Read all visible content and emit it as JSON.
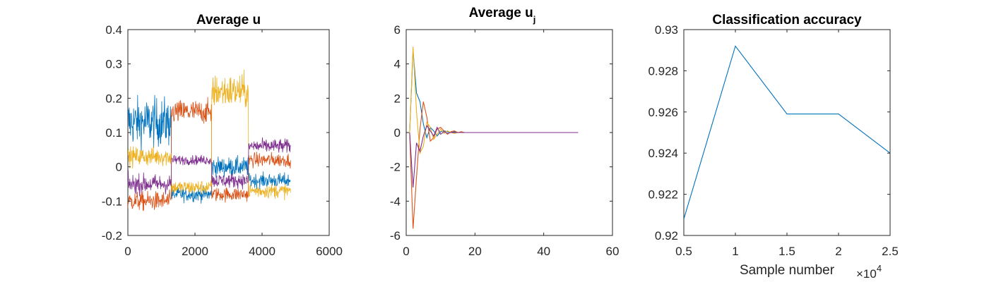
{
  "chart_data": [
    {
      "type": "line",
      "title": "Average u",
      "xlabel": "",
      "ylabel": "",
      "xlim": [
        0,
        6000
      ],
      "ylim": [
        -0.2,
        0.4
      ],
      "xticks": [
        0,
        2000,
        4000,
        6000
      ],
      "yticks": [
        -0.2,
        -0.1,
        0,
        0.1,
        0.2,
        0.3,
        0.4
      ],
      "xtick_labels": [
        "0",
        "2000",
        "4000",
        "6000"
      ],
      "ytick_labels": [
        "-0.2",
        "-0.1",
        "0",
        "0.1",
        "0.2",
        "0.3",
        "0.4"
      ],
      "grid": false,
      "noisy": true,
      "x_end": 4850,
      "segment_bounds": [
        0,
        1300,
        2500,
        3600,
        4850
      ],
      "series": [
        {
          "color": "#0072BD",
          "segment_means": [
            0.13,
            -0.08,
            0.0,
            -0.04
          ],
          "segment_noise": [
            0.05,
            0.015,
            0.02,
            0.015
          ]
        },
        {
          "color": "#D95319",
          "segment_means": [
            -0.1,
            0.16,
            -0.08,
            0.02
          ],
          "segment_noise": [
            0.02,
            0.025,
            0.015,
            0.015
          ]
        },
        {
          "color": "#EDB120",
          "segment_means": [
            0.03,
            -0.06,
            0.22,
            -0.07
          ],
          "segment_noise": [
            0.02,
            0.015,
            0.035,
            0.015
          ]
        },
        {
          "color": "#7E2F8E",
          "segment_means": [
            -0.05,
            0.02,
            -0.04,
            0.06
          ],
          "segment_noise": [
            0.02,
            0.01,
            0.015,
            0.015
          ]
        }
      ]
    },
    {
      "type": "line",
      "title": "Average u",
      "title_subscript": "j",
      "xlabel": "",
      "ylabel": "",
      "xlim": [
        0,
        60
      ],
      "ylim": [
        -6,
        6
      ],
      "xticks": [
        0,
        20,
        40,
        60
      ],
      "yticks": [
        -6,
        -4,
        -2,
        0,
        2,
        4,
        6
      ],
      "xtick_labels": [
        "0",
        "20",
        "40",
        "60"
      ],
      "ytick_labels": [
        "-6",
        "-4",
        "-2",
        "0",
        "2",
        "4",
        "6"
      ],
      "grid": false,
      "x": [
        1,
        2,
        3,
        4,
        5,
        6,
        7,
        8,
        9,
        10,
        11,
        12,
        13,
        14,
        15,
        16,
        17,
        18,
        19,
        20,
        25,
        30,
        35,
        40,
        45,
        50
      ],
      "series": [
        {
          "color": "#0072BD",
          "values": [
            0,
            4.8,
            2.3,
            1.8,
            0.5,
            -0.3,
            0.3,
            0.1,
            -0.2,
            0.05,
            0.1,
            0.05,
            0,
            0.05,
            0,
            0,
            0,
            0,
            0,
            0,
            0,
            0,
            0,
            0,
            0,
            0
          ]
        },
        {
          "color": "#D95319",
          "values": [
            0,
            -5.6,
            -2.6,
            0.2,
            1.8,
            0.9,
            -0.5,
            -0.3,
            0.2,
            0.3,
            0.1,
            -0.1,
            0.05,
            0.1,
            0,
            0.05,
            0,
            0,
            0,
            0,
            0,
            0,
            0,
            0,
            0,
            0
          ]
        },
        {
          "color": "#EDB120",
          "values": [
            0,
            5.0,
            1.2,
            -1.2,
            -0.8,
            0.6,
            0.3,
            -0.4,
            -0.1,
            0.2,
            -0.05,
            0.1,
            0,
            -0.05,
            0,
            0,
            0,
            0,
            0,
            0,
            0,
            0,
            0,
            0,
            0,
            0
          ]
        },
        {
          "color": "#7E2F8E",
          "values": [
            0,
            -3.2,
            -0.6,
            -1.1,
            -0.2,
            0.4,
            0.1,
            -0.2,
            0.3,
            -0.1,
            0.05,
            -0.05,
            0,
            0,
            0,
            0,
            0,
            0,
            0,
            0,
            0,
            0,
            0,
            0,
            0,
            0
          ]
        }
      ]
    },
    {
      "type": "line",
      "title": "Classification accuracy",
      "xlabel": "Sample number",
      "x_multiplier_label": "×10",
      "x_multiplier_exp": "4",
      "ylabel": "",
      "xlim": [
        5000,
        25000
      ],
      "ylim": [
        0.92,
        0.93
      ],
      "xticks": [
        5000,
        10000,
        15000,
        20000,
        25000
      ],
      "xtick_labels": [
        "0.5",
        "1",
        "1.5",
        "2",
        "2.5"
      ],
      "yticks": [
        0.92,
        0.922,
        0.924,
        0.926,
        0.928,
        0.93
      ],
      "ytick_labels": [
        "0.92",
        "0.922",
        "0.924",
        "0.926",
        "0.928",
        "0.93"
      ],
      "grid": false,
      "x": [
        5000,
        10000,
        15000,
        20000,
        25000
      ],
      "series": [
        {
          "color": "#0072BD",
          "values": [
            0.9208,
            0.9292,
            0.9259,
            0.9259,
            0.924
          ]
        }
      ]
    }
  ]
}
